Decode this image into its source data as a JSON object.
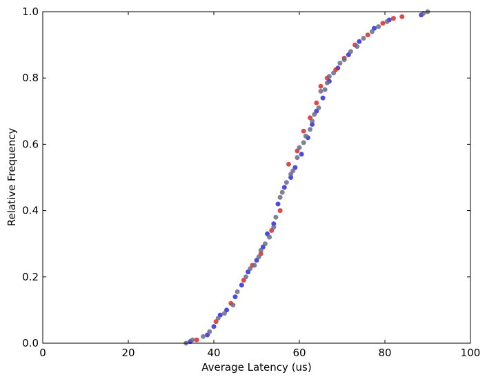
{
  "chart_data": {
    "type": "scatter",
    "title": "",
    "xlabel": "Average Latency (us)",
    "ylabel": "Relative Frequency",
    "xlim": [
      0,
      100
    ],
    "ylim": [
      0,
      1.0
    ],
    "x_ticks": [
      0,
      20,
      40,
      60,
      80,
      100
    ],
    "y_ticks": [
      0.0,
      0.2,
      0.4,
      0.6,
      0.8,
      1.0
    ],
    "x_tick_labels": [
      "0",
      "20",
      "40",
      "60",
      "80",
      "100"
    ],
    "y_tick_labels": [
      "0.0",
      "0.2",
      "0.4",
      "0.6",
      "0.8",
      "1.0"
    ],
    "grid": false,
    "legend": "none",
    "series": [
      {
        "color": "#2b2bd6",
        "x": [
          34.5,
          38.5,
          40.0,
          41.5,
          43.0,
          45.0,
          46.5,
          48.0,
          50.0,
          51.5,
          52.5,
          54.0,
          55.0,
          56.5,
          58.0,
          59.0,
          60.5,
          62.0,
          63.0,
          64.0,
          65.5,
          67.0,
          69.0,
          71.5,
          74.0,
          77.5,
          81.0,
          88.5
        ],
        "y": [
          0.005,
          0.025,
          0.05,
          0.085,
          0.1,
          0.14,
          0.175,
          0.215,
          0.25,
          0.29,
          0.33,
          0.36,
          0.42,
          0.47,
          0.5,
          0.53,
          0.57,
          0.62,
          0.66,
          0.7,
          0.74,
          0.79,
          0.83,
          0.87,
          0.91,
          0.95,
          0.975,
          0.99
        ]
      },
      {
        "color": "#d62b2b",
        "x": [
          36.0,
          40.5,
          44.0,
          47.0,
          49.0,
          51.0,
          53.5,
          55.5,
          57.5,
          59.5,
          61.0,
          62.5,
          64.0,
          65.0,
          66.5,
          68.5,
          70.5,
          73.0,
          76.0,
          79.5,
          82.0,
          84.0
        ],
        "y": [
          0.01,
          0.065,
          0.12,
          0.19,
          0.235,
          0.27,
          0.34,
          0.4,
          0.54,
          0.58,
          0.64,
          0.68,
          0.725,
          0.775,
          0.8,
          0.825,
          0.86,
          0.9,
          0.93,
          0.965,
          0.98,
          0.985
        ]
      },
      {
        "color": "#6a6a8c",
        "x": [
          33.5,
          35.0,
          37.5,
          39.0,
          41.0,
          42.5,
          44.5,
          45.5,
          47.5,
          48.5,
          49.5,
          50.5,
          51.0,
          52.0,
          53.0,
          54.0,
          54.5,
          55.5,
          56.0,
          57.0,
          58.0,
          58.5,
          59.5,
          60.0,
          61.0,
          61.5,
          62.5,
          63.0,
          63.5,
          64.5,
          65.0,
          66.0,
          66.5,
          67.0,
          68.0,
          69.5,
          70.5,
          72.0,
          73.5,
          75.0,
          77.0,
          78.5,
          80.5,
          89.0,
          90.0
        ],
        "y": [
          0.0,
          0.01,
          0.02,
          0.035,
          0.075,
          0.09,
          0.115,
          0.155,
          0.2,
          0.225,
          0.235,
          0.26,
          0.28,
          0.3,
          0.32,
          0.35,
          0.38,
          0.44,
          0.455,
          0.485,
          0.51,
          0.52,
          0.56,
          0.59,
          0.605,
          0.625,
          0.645,
          0.67,
          0.69,
          0.71,
          0.76,
          0.765,
          0.785,
          0.805,
          0.815,
          0.845,
          0.855,
          0.88,
          0.895,
          0.92,
          0.94,
          0.955,
          0.97,
          0.995,
          1.0
        ]
      }
    ]
  }
}
